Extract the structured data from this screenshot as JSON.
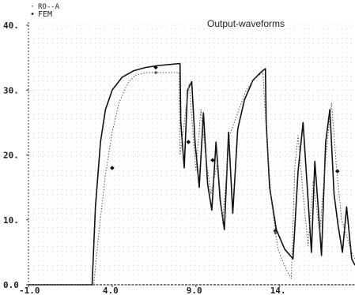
{
  "chart_data": {
    "type": "line",
    "title": "Output-waveforms",
    "xlabel": "",
    "ylabel": "",
    "xlim": [
      -1.0,
      18.5
    ],
    "ylim": [
      0.0,
      40.0
    ],
    "x_ticks": [
      {
        "value": -1.0,
        "label": "-1.0"
      },
      {
        "value": 4.0,
        "label": "4.0"
      },
      {
        "value": 9.0,
        "label": "9.0"
      },
      {
        "value": 14.0,
        "label": "14."
      }
    ],
    "y_ticks": [
      {
        "value": 0.0,
        "label": "0.0"
      },
      {
        "value": 10.0,
        "label": "10."
      },
      {
        "value": 20.0,
        "label": "20."
      },
      {
        "value": 30.0,
        "label": "30."
      },
      {
        "value": 40.0,
        "label": "40."
      }
    ],
    "grid": true,
    "legend_position": "top-left",
    "series": [
      {
        "name": "FEM",
        "style": "solid",
        "marker": "diamond",
        "x": [
          -1.0,
          2.8,
          3.0,
          3.3,
          3.6,
          4.0,
          4.6,
          5.3,
          6.0,
          6.8,
          7.6,
          8.05,
          8.1,
          8.3,
          8.5,
          8.75,
          8.95,
          9.2,
          9.45,
          9.7,
          9.95,
          10.2,
          10.45,
          10.7,
          10.95,
          11.2,
          11.5,
          11.9,
          12.4,
          12.9,
          13.15,
          13.2,
          13.4,
          13.8,
          14.3,
          14.8,
          15.1,
          15.4,
          15.7,
          15.9,
          16.1,
          16.3,
          16.5,
          16.75,
          17.0,
          17.25,
          17.5,
          17.75,
          18.0,
          18.3,
          18.5
        ],
        "y": [
          0.0,
          0.0,
          12.0,
          22.0,
          27.0,
          30.0,
          32.0,
          33.0,
          33.5,
          33.8,
          34.0,
          34.1,
          25.0,
          18.0,
          30.0,
          31.3,
          22.0,
          15.0,
          26.5,
          15.5,
          11.5,
          22.0,
          13.0,
          8.5,
          23.5,
          11.0,
          24.0,
          28.5,
          31.5,
          32.8,
          33.3,
          25.0,
          15.0,
          8.5,
          5.5,
          4.0,
          17.5,
          25.0,
          13.0,
          5.0,
          19.0,
          12.0,
          4.5,
          22.0,
          27.0,
          14.0,
          9.0,
          5.0,
          12.0,
          4.0,
          3.0
        ],
        "markers_x": [
          4.0,
          6.6,
          8.55,
          10.0,
          13.75,
          17.45
        ],
        "markers_y": [
          18.0,
          33.5,
          22.0,
          19.2,
          8.3,
          17.5
        ]
      },
      {
        "name": "",
        "style": "dotted",
        "marker": "diamond",
        "x": [
          -1.0,
          2.9,
          3.2,
          3.6,
          4.0,
          4.4,
          4.9,
          5.4,
          6.0,
          7.0,
          8.0,
          8.05,
          8.2,
          8.6,
          9.0,
          9.3,
          9.6,
          9.9,
          10.3,
          10.6,
          11.0,
          11.5,
          12.0,
          12.6,
          13.0,
          13.2,
          13.5,
          13.9,
          14.2,
          14.5,
          14.7,
          14.9,
          15.1,
          15.4,
          15.7,
          16.0,
          16.4,
          16.8,
          17.1,
          17.4,
          17.7,
          18.0,
          18.3,
          18.5
        ],
        "y": [
          0.0,
          0.0,
          8.0,
          17.0,
          23.5,
          28.0,
          31.0,
          32.3,
          32.7,
          32.7,
          32.7,
          20.0,
          23.0,
          31.0,
          17.5,
          27.0,
          19.5,
          14.0,
          19.0,
          9.5,
          23.0,
          26.5,
          30.0,
          32.0,
          32.7,
          24.0,
          13.0,
          5.5,
          3.5,
          1.8,
          1.0,
          18.0,
          23.0,
          14.0,
          6.0,
          16.0,
          8.0,
          21.0,
          28.0,
          18.0,
          10.0,
          7.5,
          5.0,
          4.0
        ],
        "markers_x": [
          6.6,
          13.75
        ],
        "markers_y": [
          32.7,
          8.0
        ]
      }
    ],
    "legend": [
      {
        "symbol": "·",
        "text": "RO--A"
      },
      {
        "symbol": "•",
        "text": "FEM"
      }
    ]
  }
}
